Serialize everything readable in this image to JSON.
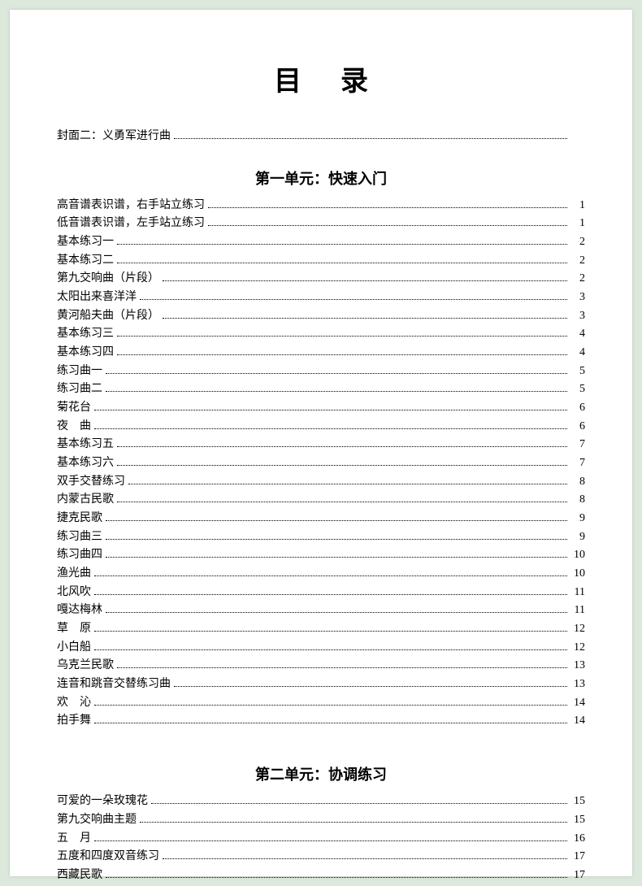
{
  "title": "目录",
  "colors": {
    "page_bg": "#ffffff",
    "outer_bg": "#dce8dc",
    "text": "#000000"
  },
  "typography": {
    "title_fontsize_pt": 26,
    "section_fontsize_pt": 14,
    "row_fontsize_pt": 11,
    "font_family": "SimSun"
  },
  "preface": [
    {
      "label": "封面二：义勇军进行曲",
      "page": ""
    }
  ],
  "sections": [
    {
      "heading": "第一单元：快速入门",
      "entries": [
        {
          "label": "高音谱表识谱，右手站立练习",
          "page": "1"
        },
        {
          "label": "低音谱表识谱，左手站立练习",
          "page": "1"
        },
        {
          "label": "基本练习一",
          "page": "2"
        },
        {
          "label": "基本练习二",
          "page": "2"
        },
        {
          "label": "第九交响曲（片段）",
          "page": "2"
        },
        {
          "label": "太阳出来喜洋洋",
          "page": "3"
        },
        {
          "label": "黄河船夫曲（片段）",
          "page": "3"
        },
        {
          "label": "基本练习三",
          "page": "4"
        },
        {
          "label": "基本练习四",
          "page": "4"
        },
        {
          "label": "练习曲一",
          "page": "5"
        },
        {
          "label": "练习曲二",
          "page": "5"
        },
        {
          "label": "菊花台",
          "page": "6"
        },
        {
          "label": "夜　曲",
          "page": "6"
        },
        {
          "label": "基本练习五",
          "page": "7"
        },
        {
          "label": "基本练习六",
          "page": "7"
        },
        {
          "label": "双手交替练习",
          "page": "8"
        },
        {
          "label": "内蒙古民歌",
          "page": "8"
        },
        {
          "label": "捷克民歌",
          "page": "9"
        },
        {
          "label": "练习曲三",
          "page": "9"
        },
        {
          "label": "练习曲四",
          "page": "10"
        },
        {
          "label": "渔光曲",
          "page": "10"
        },
        {
          "label": "北风吹",
          "page": "11"
        },
        {
          "label": "嘎达梅林",
          "page": "11"
        },
        {
          "label": "草　原",
          "page": "12"
        },
        {
          "label": "小白船",
          "page": "12"
        },
        {
          "label": "乌克兰民歌",
          "page": "13"
        },
        {
          "label": "连音和跳音交替练习曲",
          "page": "13"
        },
        {
          "label": "欢　沁",
          "page": "14"
        },
        {
          "label": "拍手舞",
          "page": "14"
        }
      ]
    },
    {
      "heading": "第二单元：协调练习",
      "entries": [
        {
          "label": "可爱的一朵玫瑰花",
          "page": "15"
        },
        {
          "label": "第九交响曲主题",
          "page": "15"
        },
        {
          "label": "五　月",
          "page": "16"
        },
        {
          "label": "五度和四度双音练习",
          "page": "17"
        },
        {
          "label": "西藏民歌",
          "page": "17"
        }
      ]
    }
  ]
}
